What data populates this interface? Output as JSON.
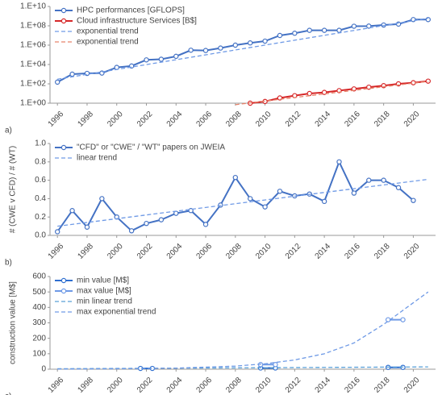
{
  "chart_data": [
    {
      "type": "line",
      "panel_label": "a)",
      "log_y": true,
      "grid": false,
      "legend": "upper left",
      "xlim": [
        1995.5,
        2021.5
      ],
      "xticks": [
        1996,
        1998,
        2000,
        2002,
        2004,
        2006,
        2008,
        2010,
        2012,
        2014,
        2016,
        2018,
        2020
      ],
      "ylim": [
        1,
        10000000000
      ],
      "yticks": [
        {
          "value": 1,
          "label": "1.E+00"
        },
        {
          "value": 100,
          "label": "1.E+02"
        },
        {
          "value": 10000,
          "label": "1.E+04"
        },
        {
          "value": 1000000,
          "label": "1.E+06"
        },
        {
          "value": 100000000,
          "label": "1.E+08"
        },
        {
          "value": 10000000000,
          "label": "1.E+10"
        }
      ],
      "series": [
        {
          "name": "HPC performances [GFLOPS]",
          "color": "#4472c4",
          "dash": false,
          "markers": true,
          "x": [
            1996,
            1997,
            1998,
            1999,
            2000,
            2001,
            2002,
            2003,
            2004,
            2005,
            2006,
            2007,
            2008,
            2009,
            2010,
            2011,
            2012,
            2013,
            2014,
            2015,
            2016,
            2017,
            2018,
            2019,
            2020,
            2021
          ],
          "values": [
            150,
            1000,
            1200,
            1300,
            5000,
            7000,
            30000,
            35000,
            70000,
            300000,
            280000,
            500000,
            1000000,
            1700000,
            2600000,
            10000000,
            17000000,
            34000000,
            34000000,
            34000000,
            90000000,
            93000000,
            120000000,
            150000000,
            440000000,
            440000000
          ]
        },
        {
          "name": "Cloud infrastructure Services [B$]",
          "color": "#d62728",
          "dash": false,
          "markers": true,
          "x": [
            2009,
            2010,
            2011,
            2012,
            2013,
            2014,
            2015,
            2016,
            2017,
            2018,
            2019,
            2020,
            2021
          ],
          "values": [
            1,
            1.5,
            3.5,
            6,
            10,
            13,
            20,
            30,
            45,
            65,
            100,
            130,
            190
          ]
        },
        {
          "name": "exponential trend",
          "color": "#6f9ae6",
          "dash": true,
          "markers": false,
          "x": [
            1996,
            2021
          ],
          "values": [
            300,
            600000000
          ]
        },
        {
          "name": "exponential trend",
          "color": "#e8846c",
          "dash": true,
          "markers": false,
          "x": [
            2008,
            2021
          ],
          "values": [
            0.7,
            180
          ]
        }
      ]
    },
    {
      "type": "line",
      "panel_label": "b)",
      "log_y": false,
      "grid": false,
      "legend": "upper left",
      "ylabel": "# (CWE v CFD) / # (WT)",
      "xlim": [
        1995.5,
        2021.5
      ],
      "xticks": [
        1996,
        1998,
        2000,
        2002,
        2004,
        2006,
        2008,
        2010,
        2012,
        2014,
        2016,
        2018,
        2020
      ],
      "ylim": [
        0,
        1
      ],
      "yticks": [
        {
          "value": 0,
          "label": "0.0"
        },
        {
          "value": 0.2,
          "label": "0.2"
        },
        {
          "value": 0.4,
          "label": "0.4"
        },
        {
          "value": 0.6,
          "label": "0.6"
        },
        {
          "value": 0.8,
          "label": "0.8"
        },
        {
          "value": 1,
          "label": "1.0"
        }
      ],
      "series": [
        {
          "name": "\"CFD\" or \"CWE\" / \"WT\" papers on JWEIA",
          "color": "#4472c4",
          "dash": false,
          "markers": true,
          "x": [
            1996,
            1997,
            1998,
            1999,
            2000,
            2001,
            2002,
            2003,
            2004,
            2005,
            2006,
            2007,
            2008,
            2009,
            2010,
            2011,
            2012,
            2013,
            2014,
            2015,
            2016,
            2017,
            2018,
            2019,
            2020
          ],
          "values": [
            0.04,
            0.27,
            0.09,
            0.4,
            0.2,
            0.05,
            0.13,
            0.17,
            0.24,
            0.27,
            0.12,
            0.33,
            0.63,
            0.4,
            0.31,
            0.48,
            0.43,
            0.45,
            0.37,
            0.8,
            0.46,
            0.6,
            0.6,
            0.52,
            0.38
          ]
        },
        {
          "name": "linear trend",
          "color": "#6f9ae6",
          "dash": true,
          "markers": false,
          "x": [
            1996,
            2021
          ],
          "values": [
            0.1,
            0.61
          ]
        }
      ]
    },
    {
      "type": "line",
      "panel_label": "c)",
      "log_y": false,
      "grid": false,
      "legend": "upper left",
      "ylabel": "construction value [M$]",
      "xlim": [
        1995.5,
        2021.5
      ],
      "xticks": [
        1996,
        1998,
        2000,
        2002,
        2004,
        2006,
        2008,
        2010,
        2012,
        2014,
        2016,
        2018,
        2020
      ],
      "ylim": [
        0,
        600
      ],
      "yticks": [
        0,
        100,
        200,
        300,
        400,
        500,
        600
      ],
      "series": [
        {
          "name": "min value [M$]",
          "color": "#2f6fd0",
          "dash": false,
          "markers": true,
          "x": [
            2001.6,
            2002.4,
            2006,
            2009.7,
            2010.7,
            2014,
            2018.3,
            2019.3
          ],
          "values": [
            5,
            5,
            null,
            8,
            8,
            null,
            12,
            12
          ]
        },
        {
          "name": "max value [M$]",
          "color": "#6f9ae6",
          "dash": false,
          "markers": true,
          "x": [
            2009.7,
            2010.7,
            2014,
            2018.3,
            2019.3
          ],
          "values": [
            30,
            30,
            null,
            320,
            320
          ]
        },
        {
          "name": "min linear trend",
          "color": "#5aa0d8",
          "dash": true,
          "markers": false,
          "x": [
            1996,
            2021
          ],
          "values": [
            3,
            15
          ]
        },
        {
          "name": "max exponential trend",
          "color": "#6f9ae6",
          "dash": true,
          "markers": false,
          "x": [
            1996,
            2000,
            2004,
            2008,
            2010,
            2012,
            2014,
            2016,
            2018,
            2020,
            2021
          ],
          "values": [
            1,
            3,
            7,
            20,
            35,
            60,
            100,
            170,
            290,
            430,
            500
          ]
        }
      ]
    }
  ]
}
